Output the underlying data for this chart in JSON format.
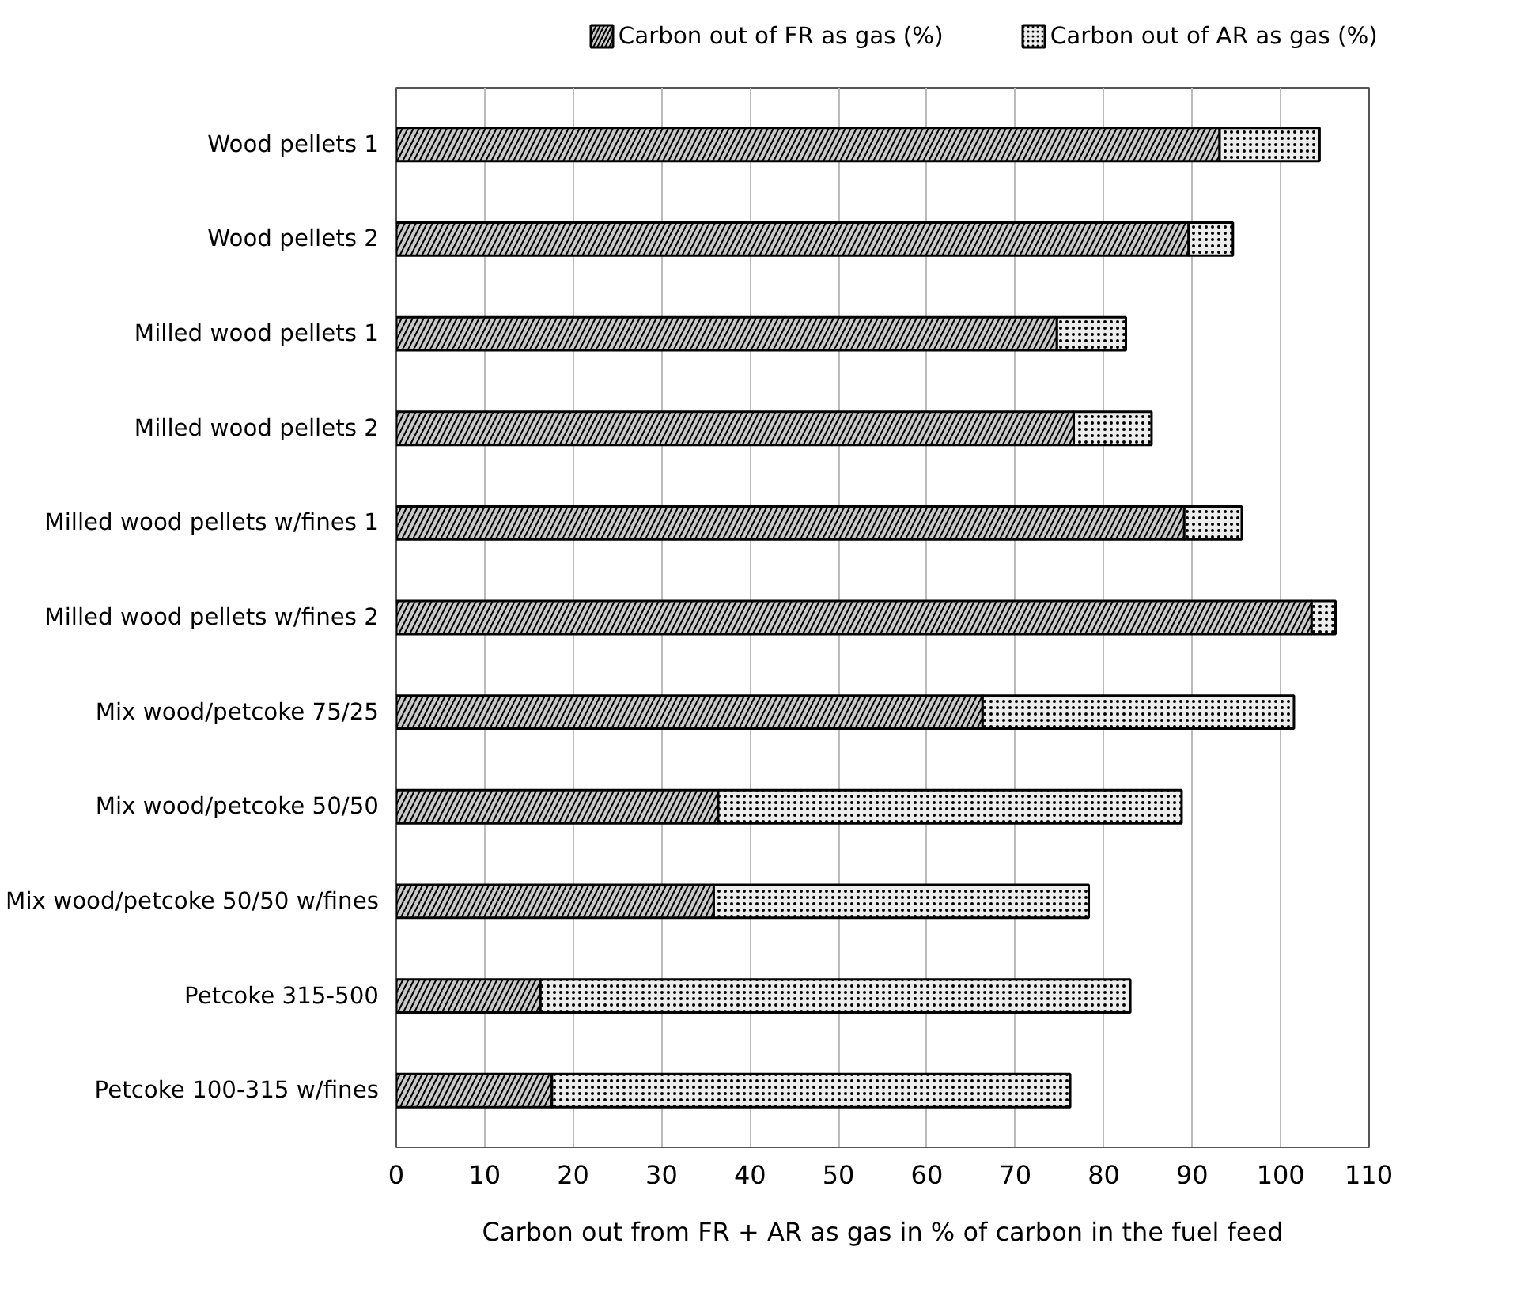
{
  "chart_data": {
    "type": "bar",
    "orientation": "horizontal",
    "stacked": true,
    "categories": [
      "Wood pellets 1",
      "Wood pellets 2",
      "Milled wood pellets 1",
      "Milled wood pellets 2",
      "Milled wood pellets w/fines 1",
      "Milled wood pellets w/fines 2",
      "Mix wood/petcoke 75/25",
      "Mix wood/petcoke 50/50",
      "Mix wood/petcoke 50/50 w/fines",
      "Petcoke 315-500",
      "Petcoke 100-315 w/fines"
    ],
    "series": [
      {
        "name": "Carbon out of FR as gas (%)",
        "color": "#c8c8c8",
        "values": [
          93.1,
          89.6,
          74.7,
          76.6,
          89.1,
          103.5,
          66.3,
          36.4,
          35.9,
          16.3,
          17.6
        ]
      },
      {
        "name": "Carbon out of AR as gas (%)",
        "color": "#ececec",
        "values": [
          11.3,
          5.0,
          7.8,
          8.8,
          6.5,
          2.7,
          35.2,
          52.4,
          42.4,
          66.7,
          58.6
        ]
      }
    ],
    "xlabel": "Carbon out from FR + AR as gas in % of carbon in the fuel feed",
    "xlim": [
      0,
      110
    ],
    "xticks": [
      0,
      10,
      20,
      30,
      40,
      50,
      60,
      70,
      80,
      90,
      100,
      110
    ],
    "grid": "x",
    "legend": "top"
  }
}
